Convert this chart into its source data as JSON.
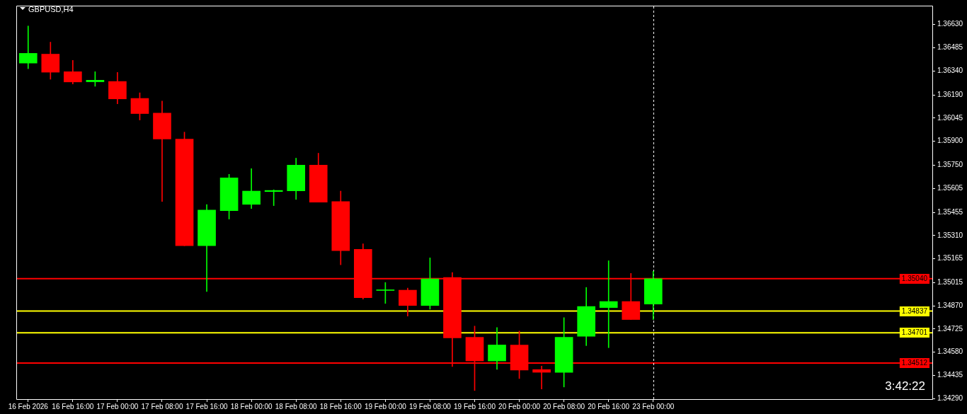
{
  "chart_data": {
    "type": "candlestick",
    "title": "GBPUSD,H4",
    "categories": [
      "16 Feb 2026",
      null,
      "16 Feb 16:00",
      null,
      "17 Feb 00:00",
      null,
      "17 Feb 08:00",
      null,
      "17 Feb 16:00",
      null,
      "18 Feb 00:00",
      null,
      "18 Feb 08:00",
      null,
      "18 Feb 16:00",
      null,
      "19 Feb 00:00",
      null,
      "19 Feb 08:00",
      null,
      "19 Feb 16:00",
      null,
      "20 Feb 00:00",
      null,
      "20 Feb 08:00",
      null,
      "20 Feb 16:00",
      null,
      "23 Feb 00:00",
      null,
      null,
      null,
      null,
      null,
      null,
      null,
      null,
      null,
      null,
      null,
      null
    ],
    "ohlc": [
      [
        1.36389,
        1.36621,
        1.36354,
        1.3645
      ],
      [
        1.36445,
        1.3652,
        1.36288,
        1.36332
      ],
      [
        1.36335,
        1.36406,
        1.36258,
        1.36271
      ],
      [
        1.36272,
        1.36335,
        1.36244,
        1.36282
      ],
      [
        1.36274,
        1.36331,
        1.36134,
        1.36165
      ],
      [
        1.36168,
        1.36203,
        1.36033,
        1.36073
      ],
      [
        1.36076,
        1.36151,
        1.35523,
        1.35914
      ],
      [
        1.35913,
        1.35957,
        1.35246,
        1.35246
      ],
      [
        1.35246,
        1.35504,
        1.3496,
        1.35469
      ],
      [
        1.35466,
        1.35693,
        1.35413,
        1.35671
      ],
      [
        1.35505,
        1.35728,
        1.35479,
        1.35588
      ],
      [
        1.35585,
        1.35596,
        1.35497,
        1.35592
      ],
      [
        1.35589,
        1.35794,
        1.35536,
        1.3575
      ],
      [
        1.3575,
        1.35825,
        1.35519,
        1.35519
      ],
      [
        1.35522,
        1.35588,
        1.35127,
        1.35215
      ],
      [
        1.35223,
        1.35258,
        1.34912,
        1.34921
      ],
      [
        1.34966,
        1.35016,
        1.34885,
        1.34966
      ],
      [
        1.34968,
        1.34981,
        1.34806,
        1.34872
      ],
      [
        1.34872,
        1.3517,
        1.34849,
        1.35039
      ],
      [
        1.35047,
        1.35078,
        1.3449,
        1.3467
      ],
      [
        1.34673,
        1.34743,
        1.3434,
        1.34525
      ],
      [
        1.34525,
        1.34734,
        1.34472,
        1.34625
      ],
      [
        1.34625,
        1.34712,
        1.34415,
        1.34468
      ],
      [
        1.34471,
        1.34493,
        1.34349,
        1.34454
      ],
      [
        1.34454,
        1.34796,
        1.34362,
        1.34673
      ],
      [
        1.34679,
        1.34985,
        1.34621,
        1.34866
      ],
      [
        1.34859,
        1.35152,
        1.34608,
        1.34897
      ],
      [
        1.34897,
        1.35073,
        1.34784,
        1.34784
      ],
      [
        1.34881,
        1.35086,
        1.34784,
        1.3504
      ],
      null,
      null,
      null,
      null,
      null,
      null,
      null,
      null,
      null,
      null,
      null,
      null
    ],
    "colors": [
      "#00ff00",
      "#ff0000",
      "#ff0000",
      "#00ff00",
      "#ff0000",
      "#ff0000",
      "#ff0000",
      "#ff0000",
      "#00ff00",
      "#00ff00",
      "#00ff00",
      "#00ff00",
      "#00ff00",
      "#ff0000",
      "#ff0000",
      "#ff0000",
      "#00ff00",
      "#ff0000",
      "#00ff00",
      "#ff0000",
      "#ff0000",
      "#00ff00",
      "#ff0000",
      "#ff0000",
      "#00ff00",
      "#00ff00",
      "#00ff00",
      "#ff0000",
      "#00ff00",
      null,
      null,
      null,
      null,
      null,
      null,
      null,
      null,
      null,
      null,
      null,
      null
    ],
    "ylim": [
      1.34286,
      1.36744
    ],
    "yticks": [
      {
        "value": 1.3429,
        "label": "1.34290"
      },
      {
        "value": 1.34435,
        "label": "1.34435"
      },
      {
        "value": 1.3458,
        "label": "1.34580"
      },
      {
        "value": 1.34725,
        "label": "1.34725"
      },
      {
        "value": 1.3487,
        "label": "1.34870"
      },
      {
        "value": 1.35015,
        "label": "1.35015"
      },
      {
        "value": 1.35165,
        "label": "1.35165"
      },
      {
        "value": 1.3531,
        "label": "1.35310"
      },
      {
        "value": 1.35455,
        "label": "1.35455"
      },
      {
        "value": 1.35605,
        "label": "1.35605"
      },
      {
        "value": 1.3575,
        "label": "1.35750"
      },
      {
        "value": 1.359,
        "label": "1.35900"
      },
      {
        "value": 1.36045,
        "label": "1.36045"
      },
      {
        "value": 1.3619,
        "label": "1.36190"
      },
      {
        "value": 1.3634,
        "label": "1.36340"
      },
      {
        "value": 1.36485,
        "label": "1.36485"
      },
      {
        "value": 1.3663,
        "label": "1.36630"
      }
    ],
    "ref_lines": [
      {
        "axis": "y",
        "value": 1.3504,
        "label": "1.35040",
        "color": "#ff0000"
      },
      {
        "axis": "y",
        "value": 1.34837,
        "label": "1.34837",
        "color": "#ffff00"
      },
      {
        "axis": "y",
        "value": 1.34701,
        "label": "1.34701",
        "color": "#ffff00"
      },
      {
        "axis": "y",
        "value": 1.34512,
        "label": "1.34512",
        "color": "#ff0000"
      },
      {
        "axis": "x",
        "value": "23 Feb 00:00",
        "color": "#ffffff",
        "line_style": "dashed"
      }
    ],
    "annotations": [
      "3:42:22"
    ]
  }
}
